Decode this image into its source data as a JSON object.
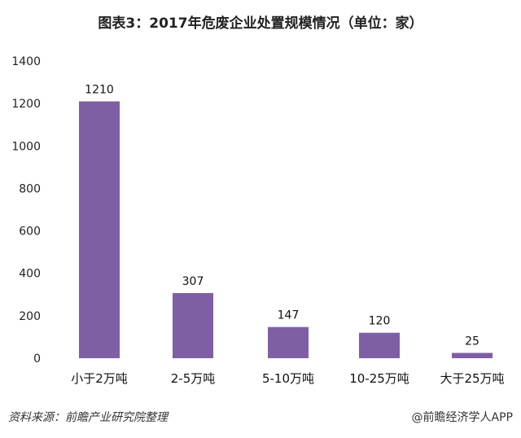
{
  "chart_data": {
    "type": "bar",
    "title": "图表3：2017年危废企业处置规模情况（单位：家）",
    "categories": [
      "小于2万吨",
      "2-5万吨",
      "5-10万吨",
      "10-25万吨",
      "大于25万吨"
    ],
    "values": [
      1210,
      307,
      147,
      120,
      25
    ],
    "data_labels": [
      "1210",
      "307",
      "147",
      "120",
      "25"
    ],
    "yticks": [
      "0",
      "200",
      "400",
      "600",
      "800",
      "1000",
      "1200",
      "1400"
    ],
    "ylim": [
      0,
      1400
    ],
    "grid": false,
    "legend": "none",
    "bar_color": "#7f5fa4"
  },
  "footer": {
    "source": "资料来源：前瞻产业研究院整理",
    "credit": "@前瞻经济学人APP"
  }
}
